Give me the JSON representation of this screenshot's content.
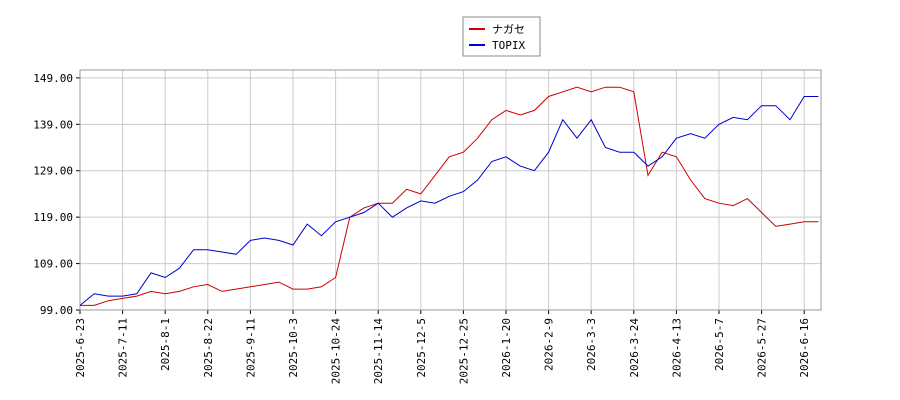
{
  "chart_data": {
    "type": "line",
    "categories": [
      "2025-6-23",
      null,
      null,
      "2025-7-11",
      null,
      null,
      "2025-8-1",
      null,
      null,
      "2025-8-22",
      null,
      null,
      "2025-9-11",
      null,
      null,
      "2025-10-3",
      null,
      null,
      "2025-10-24",
      null,
      null,
      "2025-11-14",
      null,
      null,
      "2025-12-5",
      null,
      null,
      "2025-12-25",
      null,
      null,
      "2026-1-20",
      null,
      null,
      "2026-2-9",
      null,
      null,
      "2026-3-3",
      null,
      null,
      "2026-3-24",
      null,
      null,
      "2026-4-13",
      null,
      null,
      "2026-5-7",
      null,
      null,
      "2026-5-27",
      null,
      null,
      "2026-6-16",
      null
    ],
    "series": [
      {
        "name": "ナガセ",
        "color": "#cc0000",
        "values": [
          100,
          100,
          101,
          101.5,
          102,
          103,
          102.5,
          103,
          104,
          104.5,
          103,
          103.5,
          104,
          104.5,
          105,
          103.5,
          103.5,
          104,
          106,
          119,
          121,
          122,
          122,
          125,
          124,
          128,
          132,
          133,
          136,
          140,
          142,
          141,
          142,
          145,
          146,
          147,
          146,
          147,
          147,
          146,
          128,
          133,
          132,
          127,
          123,
          122,
          121.5,
          123,
          120,
          117,
          117.5,
          118,
          118
        ]
      },
      {
        "name": "TOPIX",
        "color": "#0000cc",
        "values": [
          100,
          102.5,
          102,
          102,
          102.5,
          107,
          106,
          108,
          112,
          112,
          111.5,
          111,
          114,
          114.5,
          114,
          113,
          117.5,
          115,
          118,
          119,
          120,
          122,
          119,
          121,
          122.5,
          122,
          123.5,
          124.5,
          127,
          131,
          132,
          130,
          129,
          133,
          140,
          136,
          140,
          134,
          133,
          133,
          130,
          132,
          136,
          137,
          136,
          139,
          140.5,
          140,
          143,
          143,
          140,
          145,
          145
        ]
      }
    ],
    "ylim": [
      99,
      150.7
    ],
    "yticks": [
      {
        "value": 99,
        "label": "99.00"
      },
      {
        "value": 109,
        "label": "109.00"
      },
      {
        "value": 119,
        "label": "119.00"
      },
      {
        "value": 129,
        "label": "129.00"
      },
      {
        "value": 139,
        "label": "139.00"
      },
      {
        "value": 149,
        "label": "149.00"
      }
    ],
    "grid": true,
    "legend": "top"
  }
}
